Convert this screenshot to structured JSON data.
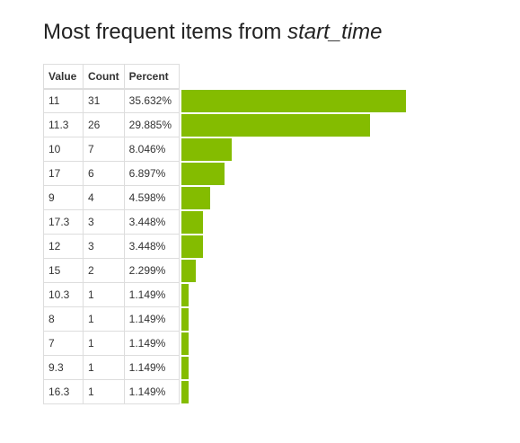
{
  "title": {
    "prefix": "Most frequent items from ",
    "field": "start_time"
  },
  "table": {
    "headers": {
      "value": "Value",
      "count": "Count",
      "percent": "Percent"
    },
    "rows": [
      {
        "value": "11",
        "count": "31",
        "percent": "35.632%"
      },
      {
        "value": "11.3",
        "count": "26",
        "percent": "29.885%"
      },
      {
        "value": "10",
        "count": "7",
        "percent": "8.046%"
      },
      {
        "value": "17",
        "count": "6",
        "percent": "6.897%"
      },
      {
        "value": "9",
        "count": "4",
        "percent": "4.598%"
      },
      {
        "value": "17.3",
        "count": "3",
        "percent": "3.448%"
      },
      {
        "value": "12",
        "count": "3",
        "percent": "3.448%"
      },
      {
        "value": "15",
        "count": "2",
        "percent": "2.299%"
      },
      {
        "value": "10.3",
        "count": "1",
        "percent": "1.149%"
      },
      {
        "value": "8",
        "count": "1",
        "percent": "1.149%"
      },
      {
        "value": "7",
        "count": "1",
        "percent": "1.149%"
      },
      {
        "value": "9.3",
        "count": "1",
        "percent": "1.149%"
      },
      {
        "value": "16.3",
        "count": "1",
        "percent": "1.149%"
      }
    ]
  },
  "colors": {
    "bar": "#84bc00"
  }
}
